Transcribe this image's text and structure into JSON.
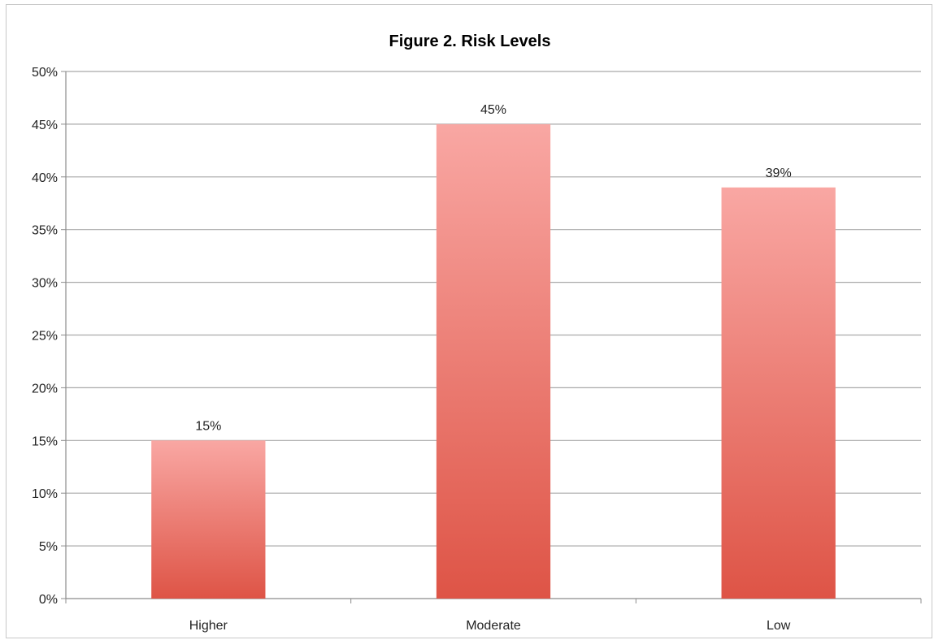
{
  "chart_data": {
    "type": "bar",
    "title": "Figure 2.  Risk Levels",
    "xlabel": "",
    "ylabel": "",
    "categories": [
      "Higher",
      "Moderate",
      "Low"
    ],
    "values": [
      15,
      45,
      39
    ],
    "data_labels": [
      "15%",
      "45%",
      "39%"
    ],
    "ylim": [
      0,
      50
    ],
    "y_ticks": [
      "0%",
      "5%",
      "10%",
      "15%",
      "20%",
      "25%",
      "30%",
      "35%",
      "40%",
      "45%",
      "50%"
    ],
    "grid": true,
    "legend": "none",
    "colors": {
      "bar_top": "#f9a7a3",
      "bar_bottom": "#de5446",
      "gridline": "#a9a9a9",
      "axis": "#8c8c8c"
    }
  }
}
